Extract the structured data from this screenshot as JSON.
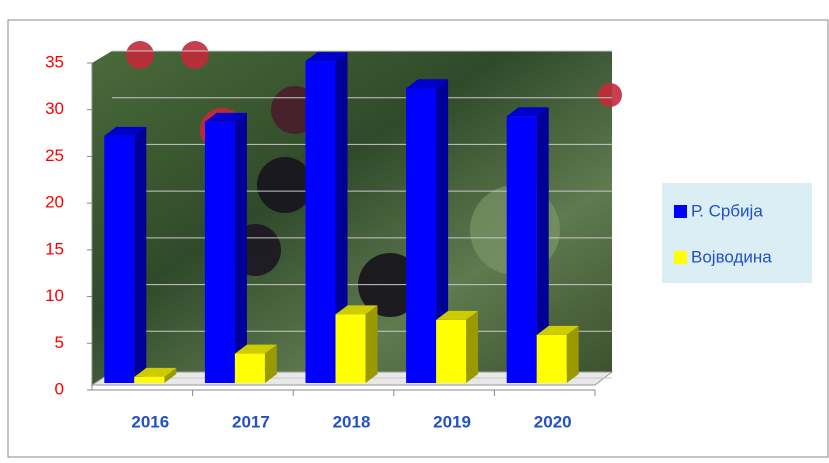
{
  "chart_data": {
    "type": "bar3d",
    "categories": [
      "2016",
      "2017",
      "2018",
      "2019",
      "2020"
    ],
    "series": [
      {
        "name": "Р. Србија",
        "color": "#0000ff",
        "values": [
          27.2,
          28.7,
          35.2,
          32.3,
          29.3
        ]
      },
      {
        "name": "Војводина",
        "color": "#ffff00",
        "values": [
          1.4,
          3.9,
          8.1,
          7.5,
          5.9
        ]
      }
    ],
    "ylim": [
      0,
      35
    ],
    "yticks": [
      0,
      5,
      10,
      15,
      20,
      25,
      30,
      35
    ],
    "grid": true,
    "legend": "right"
  }
}
